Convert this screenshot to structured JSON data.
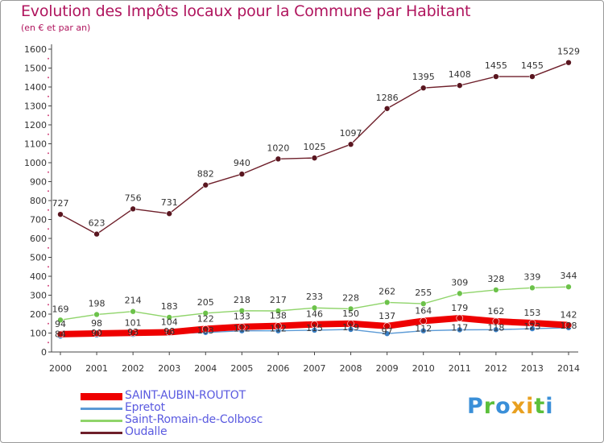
{
  "title": "Evolution des Impôts locaux pour la Commune par Habitant",
  "subtitle": "(en € et par an)",
  "logo": {
    "text": [
      "P",
      "r",
      "o",
      "x",
      "i",
      "t",
      "i"
    ],
    "colors": [
      "#3a8fd8",
      "#5bbf3a",
      "#3a8fd8",
      "#e8a020",
      "#e8a020",
      "#5bbf3a",
      "#3a8fd8"
    ]
  },
  "chart_data": {
    "type": "line",
    "title": "Evolution des Impôts locaux pour la Commune par Habitant",
    "ylabel": "(en € et par an)",
    "xlabel": "",
    "x": [
      "2000",
      "2001",
      "2002",
      "2003",
      "2004",
      "2005",
      "2006",
      "2007",
      "2008",
      "2009",
      "2010",
      "2011",
      "2012",
      "2013",
      "2014"
    ],
    "ylim": [
      0,
      1600
    ],
    "yticks": [
      "0",
      "100",
      "200",
      "300",
      "400",
      "500",
      "600",
      "700",
      "800",
      "900",
      "1000",
      "1100",
      "1200",
      "1300",
      "1400",
      "1500",
      "1600"
    ],
    "series": [
      {
        "name": "Oudalle",
        "color": "#6e1f2a",
        "values": [
          727,
          623,
          756,
          731,
          882,
          940,
          1020,
          1025,
          1097,
          1286,
          1395,
          1408,
          1455,
          1455,
          1529
        ],
        "labels": [
          "727",
          "623",
          "756",
          "731",
          "882",
          "940",
          "1020",
          "1025",
          "1097",
          "1286",
          "1395",
          "1408",
          "1455",
          "1455",
          "1529"
        ]
      },
      {
        "name": "Saint-Romain-de-Colbosc",
        "color": "#8fd46a",
        "values": [
          169,
          198,
          214,
          183,
          205,
          218,
          217,
          233,
          228,
          262,
          255,
          309,
          328,
          339,
          344
        ],
        "labels": [
          "169",
          "198",
          "214",
          "183",
          "205",
          "218",
          "217",
          "233",
          "228",
          "262",
          "255",
          "309",
          "328",
          "339",
          "344"
        ]
      },
      {
        "name": "Epretot",
        "color": "#5b9ad6",
        "values": [
          84,
          90,
          93,
          98,
          103,
          112,
          112,
          115,
          119,
          97,
          112,
          117,
          118,
          123,
          128
        ],
        "labels": [
          "84",
          "90",
          "93",
          "98",
          "103",
          "112",
          "112",
          "115",
          "119",
          "97",
          "112",
          "117",
          "118",
          "123",
          "128"
        ]
      },
      {
        "name": "SAINT-AUBIN-ROUTOT",
        "color": "#ee0000",
        "values": [
          94,
          98,
          101,
          104,
          122,
          133,
          138,
          146,
          150,
          137,
          164,
          179,
          162,
          153,
          142
        ],
        "labels": [
          "94",
          "98",
          "101",
          "104",
          "122",
          "133",
          "138",
          "146",
          "150",
          "137",
          "164",
          "179",
          "162",
          "153",
          "142"
        ]
      }
    ],
    "legend": [
      {
        "name": "SAINT-AUBIN-ROUTOT",
        "color": "#ee0000"
      },
      {
        "name": "Epretot",
        "color": "#5b9ad6"
      },
      {
        "name": "Saint-Romain-de-Colbosc",
        "color": "#8fd46a"
      },
      {
        "name": "Oudalle",
        "color": "#6e1f2a"
      }
    ],
    "legend_position": "bottom-left",
    "grid": false
  }
}
